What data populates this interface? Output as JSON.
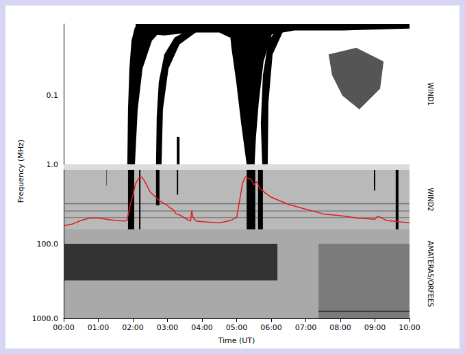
{
  "chart_data": {
    "type": "spectrogram",
    "x_label": "Time (UT)",
    "y_label": "Frequency (MHz)",
    "log": "y",
    "xlim": [
      0,
      10
    ],
    "xticks": [
      {
        "value": 0,
        "label": "00:00"
      },
      {
        "value": 1,
        "label": "01:00"
      },
      {
        "value": 2,
        "label": "02:00"
      },
      {
        "value": 3,
        "label": "03:00"
      },
      {
        "value": 4,
        "label": "04:00"
      },
      {
        "value": 5,
        "label": "05:00"
      },
      {
        "value": 6,
        "label": "06:00"
      },
      {
        "value": 7,
        "label": "07:00"
      },
      {
        "value": 8,
        "label": "08:00"
      },
      {
        "value": 9,
        "label": "09:00"
      },
      {
        "value": 10,
        "label": "10:00"
      }
    ],
    "panels": [
      {
        "name": "WIND1",
        "ylim": [
          0.009,
          1
        ],
        "yticks": [
          0.1,
          {
            "value": 1,
            "label": "1.0"
          }
        ],
        "regions": [
          {
            "color": "#000000",
            "points": [
              [
                2.08,
                0.009
              ],
              [
                10,
                0.009
              ],
              [
                10,
                0.0105
              ],
              [
                8.06,
                0.0112
              ],
              [
                6.67,
                0.0112
              ],
              [
                6.08,
                0.0126
              ],
              [
                5.49,
                0.0141
              ],
              [
                4.79,
                0.0141
              ],
              [
                4.5,
                0.012
              ],
              [
                3.7,
                0.012
              ],
              [
                2.91,
                0.0132
              ],
              [
                2.51,
                0.0126
              ],
              [
                2.08,
                0.0112
              ]
            ]
          },
          {
            "color": "#000000",
            "points": [
              [
                1.84,
                1
              ],
              [
                1.86,
                0.158
              ],
              [
                1.9,
                0.04
              ],
              [
                1.96,
                0.0158
              ],
              [
                2.06,
                0.01
              ],
              [
                2.91,
                0.01
              ],
              [
                2.55,
                0.0158
              ],
              [
                2.28,
                0.04
              ],
              [
                2.14,
                0.158
              ],
              [
                2.06,
                1
              ]
            ]
          },
          {
            "color": "#000000",
            "points": [
              [
                2.67,
                1
              ],
              [
                2.69,
                0.2
              ],
              [
                2.75,
                0.063
              ],
              [
                2.91,
                0.025
              ],
              [
                3.21,
                0.0141
              ],
              [
                3.6,
                0.0112
              ],
              [
                3.9,
                0.0112
              ],
              [
                3.35,
                0.0178
              ],
              [
                3.03,
                0.04
              ],
              [
                2.87,
                0.158
              ],
              [
                2.83,
                1
              ]
            ]
          },
          {
            "color": "#000000",
            "points": [
              [
                3.27,
                1
              ],
              [
                3.27,
                0.398
              ],
              [
                3.35,
                0.398
              ],
              [
                3.35,
                1
              ]
            ]
          },
          {
            "color": "#000000",
            "points": [
              [
                5.29,
                1
              ],
              [
                5.13,
                0.251
              ],
              [
                4.99,
                0.063
              ],
              [
                4.85,
                0.02
              ],
              [
                4.79,
                0.01
              ],
              [
                6.08,
                0.01
              ],
              [
                5.78,
                0.0316
              ],
              [
                5.64,
                0.126
              ],
              [
                5.56,
                0.398
              ],
              [
                5.52,
                1
              ]
            ]
          },
          {
            "color": "#000000",
            "points": [
              [
                5.74,
                1
              ],
              [
                5.7,
                0.251
              ],
              [
                5.76,
                0.05
              ],
              [
                5.92,
                0.0158
              ],
              [
                6.18,
                0.0105
              ],
              [
                6.38,
                0.0105
              ],
              [
                6.04,
                0.025
              ],
              [
                5.92,
                0.126
              ],
              [
                5.9,
                1
              ]
            ]
          },
          {
            "color": "#555555",
            "points": [
              [
                7.66,
                0.025
              ],
              [
                8.46,
                0.02
              ],
              [
                9.25,
                0.0316
              ],
              [
                9.15,
                0.079
              ],
              [
                8.55,
                0.158
              ],
              [
                8.06,
                0.1
              ],
              [
                7.76,
                0.05
              ]
            ]
          }
        ]
      },
      {
        "name": "WIND2",
        "ylim": [
          1,
          14
        ],
        "yticks": [],
        "regions": [
          {
            "color": "#6e6e6e",
            "points": [
              [
                0,
                4.4
              ],
              [
                10,
                4.4
              ],
              [
                10,
                4.6
              ],
              [
                0,
                4.6
              ]
            ]
          },
          {
            "color": "#6e6e6e",
            "points": [
              [
                0,
                6.1
              ],
              [
                10,
                6.1
              ],
              [
                10,
                6.3
              ],
              [
                0,
                6.3
              ]
            ]
          },
          {
            "color": "#6e6e6e",
            "points": [
              [
                0,
                8.2
              ],
              [
                10,
                8.2
              ],
              [
                10,
                8.4
              ],
              [
                0,
                8.4
              ]
            ]
          },
          {
            "color": "#555555",
            "points": [
              [
                1.23,
                1
              ],
              [
                1.25,
                1
              ],
              [
                1.25,
                2
              ],
              [
                1.23,
                2
              ]
            ]
          },
          {
            "color": "#000000",
            "points": [
              [
                1.86,
                1
              ],
              [
                2.04,
                1
              ],
              [
                2.04,
                14
              ],
              [
                1.86,
                14
              ]
            ]
          },
          {
            "color": "#000000",
            "points": [
              [
                2.18,
                1
              ],
              [
                2.22,
                1
              ],
              [
                2.22,
                14
              ],
              [
                2.18,
                14
              ]
            ]
          },
          {
            "color": "#000000",
            "points": [
              [
                2.67,
                1
              ],
              [
                2.77,
                1
              ],
              [
                2.77,
                4.8
              ],
              [
                2.67,
                4.8
              ]
            ]
          },
          {
            "color": "#000000",
            "points": [
              [
                3.27,
                1
              ],
              [
                3.31,
                1
              ],
              [
                3.31,
                3
              ],
              [
                3.27,
                3
              ]
            ]
          },
          {
            "color": "#000000",
            "points": [
              [
                5.29,
                1
              ],
              [
                5.54,
                1
              ],
              [
                5.54,
                14
              ],
              [
                5.29,
                14
              ]
            ]
          },
          {
            "color": "#000000",
            "points": [
              [
                5.62,
                1
              ],
              [
                5.76,
                1
              ],
              [
                5.76,
                14
              ],
              [
                5.62,
                14
              ]
            ]
          },
          {
            "color": "#000000",
            "points": [
              [
                8.97,
                1
              ],
              [
                9.01,
                1
              ],
              [
                9.01,
                2.5
              ],
              [
                8.97,
                2.5
              ]
            ]
          },
          {
            "color": "#000000",
            "points": [
              [
                9.6,
                1
              ],
              [
                9.68,
                1
              ],
              [
                9.68,
                14
              ],
              [
                9.6,
                14
              ]
            ]
          }
        ]
      },
      {
        "name": "AMATERAS/ORFEES",
        "ylim": [
          64,
          1000
        ],
        "yticks": [
          {
            "value": 100,
            "label": "100.0"
          },
          {
            "value": 1000,
            "label": "1000.0"
          }
        ],
        "regions": [
          {
            "color": "#333333",
            "points": [
              [
                0,
                100
              ],
              [
                6.18,
                100
              ],
              [
                6.18,
                310
              ],
              [
                0,
                310
              ]
            ]
          },
          {
            "color": "#7b7b7b",
            "points": [
              [
                7.37,
                100
              ],
              [
                10,
                100
              ],
              [
                10,
                1000
              ],
              [
                7.37,
                1000
              ]
            ]
          },
          {
            "color": "#2b2b2b",
            "points": [
              [
                7.37,
                790
              ],
              [
                10,
                790
              ],
              [
                10,
                820
              ],
              [
                7.37,
                820
              ]
            ]
          }
        ]
      }
    ],
    "y2lim": [
      0,
      100
    ],
    "series": [
      {
        "color": "#e31a1c",
        "axis": "y2",
        "x": [
          0,
          0.25,
          0.5,
          0.75,
          1,
          1.25,
          1.5,
          1.75,
          1.83,
          1.92,
          2,
          2.08,
          2.17,
          2.25,
          2.33,
          2.5,
          2.75,
          3,
          3.08,
          3.17,
          3.25,
          3.33,
          3.5,
          3.67,
          3.7,
          3.75,
          3.83,
          4,
          4.5,
          4.83,
          5,
          5.08,
          5.17,
          5.25,
          5.33,
          5.42,
          5.5,
          5.58,
          5.67,
          5.83,
          6,
          6.5,
          7,
          7.5,
          8,
          8.5,
          9,
          9.08,
          9.17,
          9.33,
          9.67,
          10
        ],
        "values": [
          6,
          9,
          15,
          19,
          19,
          17,
          15,
          14,
          15,
          40,
          57,
          77,
          86,
          88,
          82,
          63,
          49,
          40,
          36,
          33,
          26,
          25,
          19,
          14,
          31,
          19,
          14,
          13,
          11,
          15,
          20,
          46,
          77,
          88,
          86,
          84,
          75,
          80,
          69,
          61,
          54,
          42,
          34,
          26,
          23,
          19,
          17,
          22,
          20,
          15,
          13,
          11
        ]
      }
    ]
  }
}
